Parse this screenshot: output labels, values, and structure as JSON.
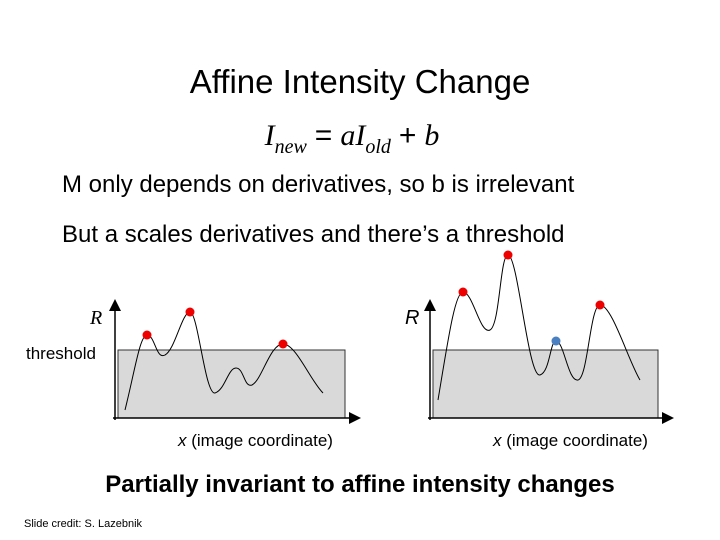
{
  "slide": {
    "title": "Affine Intensity Change",
    "formula": {
      "lhs": "I",
      "lhs_sub": "new",
      "eq": "=",
      "coef": "a",
      "rhs": "I",
      "rhs_sub": "old",
      "plus": "+",
      "offset": "b"
    },
    "bullets": [
      "M only depends on derivatives, so b is irrelevant",
      "But a scales derivatives and there’s a threshold"
    ],
    "plots": [
      {
        "y_label": "R",
        "threshold_label": "threshold",
        "x_var": "x",
        "x_desc": "(image coordinate)"
      },
      {
        "y_label": "R",
        "x_var": "x",
        "x_desc": "(image coordinate)"
      }
    ],
    "conclusion": "Partially invariant to affine intensity changes",
    "credit": "Slide credit: S. Lazebnik"
  }
}
